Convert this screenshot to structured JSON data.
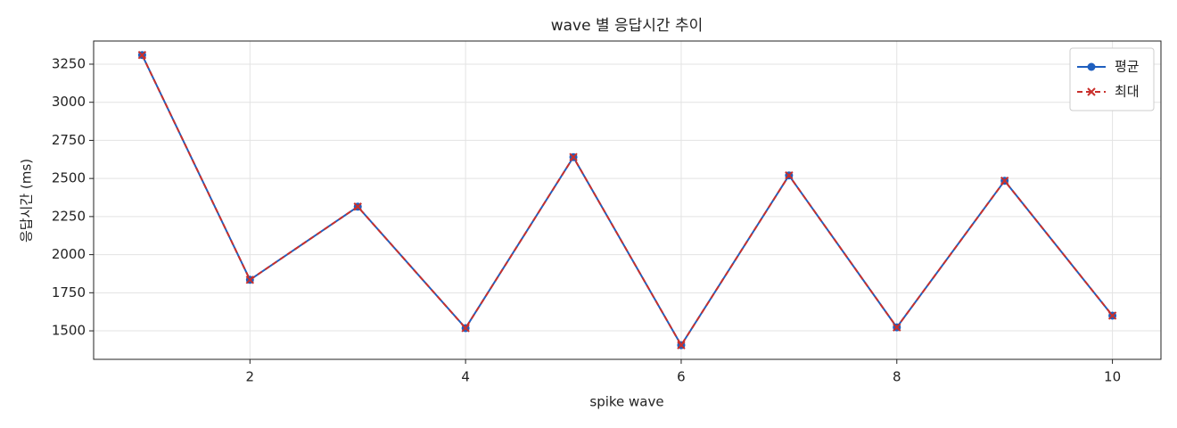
{
  "chart_data": {
    "type": "line",
    "title": "wave 별 응답시간 추이",
    "x_label": "spike wave",
    "y_label": "응답시간 (ms)",
    "x": [
      1,
      2,
      3,
      4,
      5,
      6,
      7,
      8,
      9,
      10
    ],
    "series": [
      {
        "name": "평균",
        "color": "#1f5fbf",
        "marker": "o",
        "dash": false,
        "values": [
          3310,
          1835,
          2315,
          1518,
          2640,
          1406,
          2520,
          1523,
          2485,
          1600
        ]
      },
      {
        "name": "최대",
        "color": "#c9302c",
        "marker": "x",
        "dash": true,
        "values": [
          3310,
          1835,
          2315,
          1518,
          2640,
          1406,
          2520,
          1523,
          2485,
          1600
        ]
      }
    ],
    "xlim": [
      0.55,
      10.45
    ],
    "xticks": [
      2,
      4,
      6,
      8,
      10
    ],
    "ylim": [
      1313,
      3402
    ],
    "yticks": [
      1500,
      1750,
      2000,
      2250,
      2500,
      2750,
      3000,
      3250
    ],
    "grid": true,
    "legend": "upper right"
  }
}
